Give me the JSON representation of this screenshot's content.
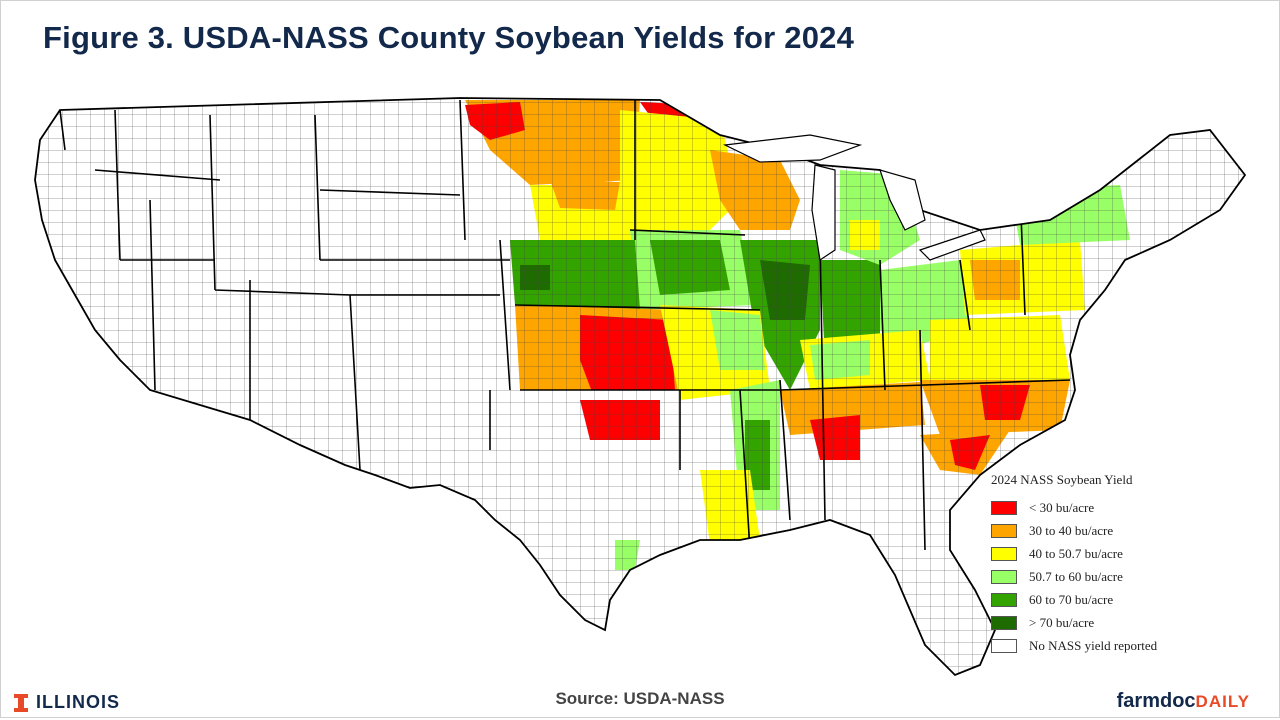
{
  "title": "Figure 3. USDA-NASS County Soybean Yields for 2024",
  "source": "Source: USDA-NASS",
  "logos": {
    "illinois": "ILLINOIS",
    "farmdoc_a": "farmdoc",
    "farmdoc_b": "DAILY"
  },
  "legend": {
    "title": "2024 NASS Soybean Yield",
    "items": [
      {
        "label": "< 30 bu/acre",
        "color": "#ff0000"
      },
      {
        "label": "30 to 40 bu/acre",
        "color": "#ffa500"
      },
      {
        "label": "40 to 50.7 bu/acre",
        "color": "#ffff00"
      },
      {
        "label": "50.7 to 60 bu/acre",
        "color": "#99ff66"
      },
      {
        "label": "60 to 70 bu/acre",
        "color": "#33a300"
      },
      {
        "label": "> 70 bu/acre",
        "color": "#1e6b00"
      },
      {
        "label": "No NASS yield reported",
        "color": "#ffffff"
      }
    ]
  }
}
